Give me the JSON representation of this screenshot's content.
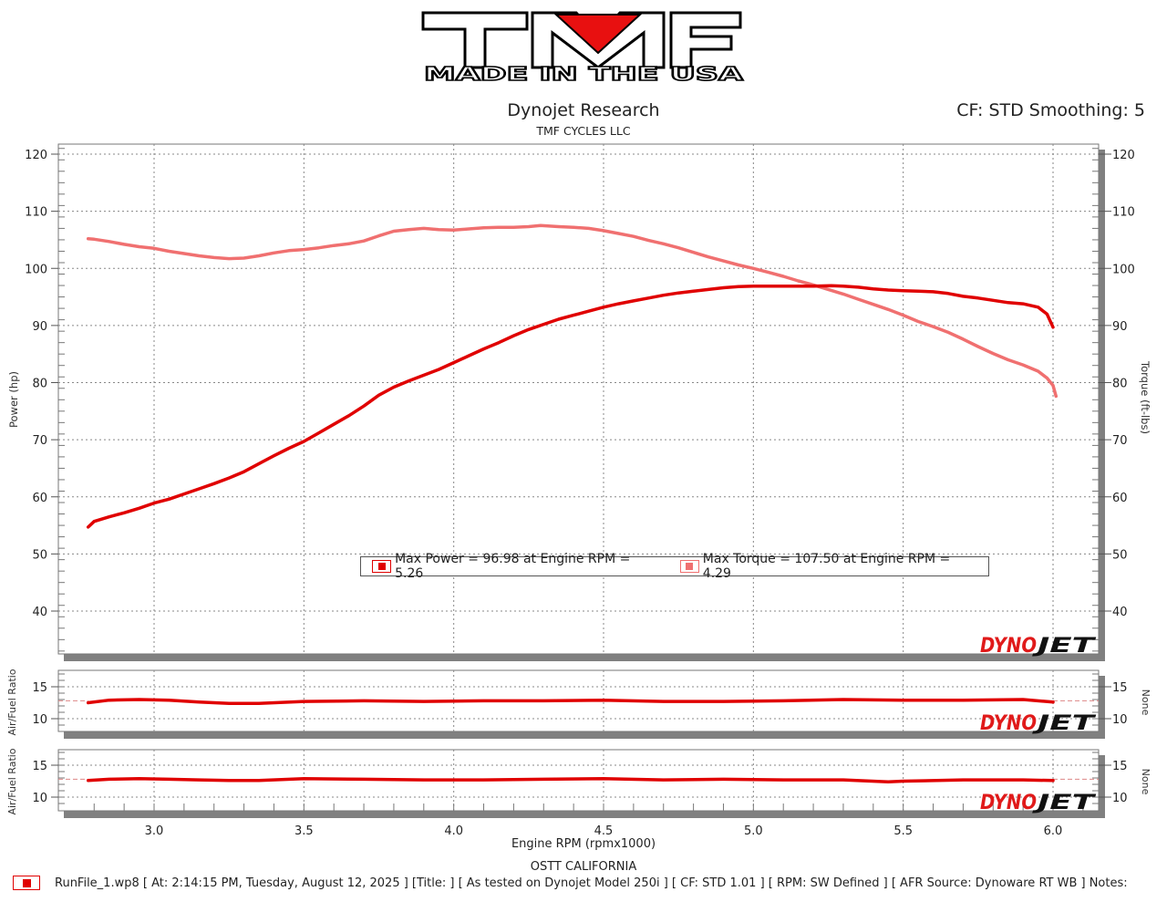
{
  "header": {
    "logo_main": "TMF",
    "logo_sub": "MADE IN THE USA",
    "title": "Dynojet Research",
    "subtitle": "TMF CYCLES LLC",
    "correction": "CF: STD Smoothing: 5"
  },
  "colors": {
    "power": "#e00000",
    "torque": "#f07070",
    "afr": "#e00000",
    "grid": "#888888",
    "frame_shadow": "#808080",
    "dynojet_red": "#e01a1a",
    "dynojet_black": "#111111"
  },
  "legend": {
    "power": "Max Power = 96.98 at Engine RPM = 5.26",
    "torque": "Max Torque = 107.50 at Engine RPM = 4.29"
  },
  "footer": {
    "xlabel": "Engine RPM (rpmx1000)",
    "location": "OSTT CALIFORNIA",
    "run_info": "RunFile_1.wp8 [ At: 2:14:15 PM, Tuesday, August 12, 2025 ] [Title: ]  [ As tested on Dynojet Model 250i ] [ CF: STD 1.01 ] [ RPM: SW Defined ] [ AFR Source: Dynoware RT WB ] Notes:"
  },
  "watermark": {
    "left": "DYNO",
    "right": "JET"
  },
  "chart_data": [
    {
      "type": "line",
      "title": "Dynojet Research",
      "subtitle": "TMF CYCLES LLC",
      "xlabel": "Engine RPM (rpmx1000)",
      "ylabel": "Power (hp)",
      "ylabel_right": "Torque (ft-lbs)",
      "xlim": [
        2.7,
        6.15
      ],
      "ylim": [
        33,
        121
      ],
      "x_ticks": [
        3.0,
        3.5,
        4.0,
        4.5,
        5.0,
        5.5,
        6.0
      ],
      "y_ticks": [
        40,
        50,
        60,
        70,
        80,
        90,
        100,
        110,
        120
      ],
      "grid": true,
      "legend_position": "lower-center",
      "series": [
        {
          "name": "Power (hp)",
          "max_label": "Max Power = 96.98 at Engine RPM = 5.26",
          "x": [
            2.78,
            2.8,
            2.85,
            2.9,
            2.95,
            3.0,
            3.05,
            3.1,
            3.15,
            3.2,
            3.25,
            3.3,
            3.35,
            3.4,
            3.45,
            3.5,
            3.55,
            3.6,
            3.65,
            3.7,
            3.75,
            3.8,
            3.85,
            3.9,
            3.95,
            4.0,
            4.05,
            4.1,
            4.15,
            4.2,
            4.25,
            4.3,
            4.35,
            4.4,
            4.45,
            4.5,
            4.55,
            4.6,
            4.65,
            4.7,
            4.75,
            4.8,
            4.85,
            4.9,
            4.95,
            5.0,
            5.05,
            5.1,
            5.15,
            5.2,
            5.26,
            5.3,
            5.35,
            5.4,
            5.45,
            5.5,
            5.55,
            5.6,
            5.65,
            5.7,
            5.75,
            5.8,
            5.85,
            5.9,
            5.95,
            5.98,
            6.0
          ],
          "values": [
            54.7,
            55.7,
            56.5,
            57.2,
            58.0,
            58.9,
            59.6,
            60.5,
            61.4,
            62.3,
            63.3,
            64.4,
            65.8,
            67.2,
            68.5,
            69.7,
            71.2,
            72.7,
            74.2,
            75.9,
            77.8,
            79.2,
            80.3,
            81.3,
            82.3,
            83.5,
            84.7,
            85.9,
            87.0,
            88.2,
            89.3,
            90.2,
            91.1,
            91.8,
            92.5,
            93.2,
            93.8,
            94.3,
            94.8,
            95.3,
            95.7,
            96.0,
            96.3,
            96.6,
            96.8,
            96.9,
            96.9,
            96.9,
            96.9,
            96.9,
            96.98,
            96.9,
            96.7,
            96.4,
            96.2,
            96.1,
            96.0,
            95.9,
            95.6,
            95.1,
            94.8,
            94.4,
            94.0,
            93.8,
            93.2,
            92.0,
            89.7
          ]
        },
        {
          "name": "Torque (ft-lbs)",
          "max_label": "Max Torque = 107.50 at Engine RPM = 4.29",
          "x": [
            2.78,
            2.8,
            2.85,
            2.9,
            2.95,
            3.0,
            3.05,
            3.1,
            3.15,
            3.2,
            3.25,
            3.3,
            3.35,
            3.4,
            3.45,
            3.5,
            3.55,
            3.6,
            3.65,
            3.7,
            3.75,
            3.8,
            3.85,
            3.9,
            3.95,
            4.0,
            4.05,
            4.1,
            4.15,
            4.2,
            4.25,
            4.29,
            4.35,
            4.4,
            4.45,
            4.5,
            4.55,
            4.6,
            4.65,
            4.7,
            4.75,
            4.8,
            4.85,
            4.9,
            4.95,
            5.0,
            5.05,
            5.1,
            5.15,
            5.2,
            5.25,
            5.3,
            5.35,
            5.4,
            5.45,
            5.5,
            5.55,
            5.6,
            5.65,
            5.7,
            5.75,
            5.8,
            5.85,
            5.9,
            5.95,
            5.98,
            6.0,
            6.01
          ],
          "values": [
            105.2,
            105.1,
            104.7,
            104.2,
            103.8,
            103.5,
            103.0,
            102.6,
            102.2,
            101.9,
            101.7,
            101.8,
            102.2,
            102.7,
            103.1,
            103.3,
            103.6,
            104.0,
            104.3,
            104.8,
            105.7,
            106.5,
            106.8,
            107.0,
            106.8,
            106.7,
            106.9,
            107.1,
            107.2,
            107.2,
            107.3,
            107.5,
            107.3,
            107.2,
            107.0,
            106.6,
            106.1,
            105.6,
            104.9,
            104.3,
            103.6,
            102.8,
            102.0,
            101.3,
            100.6,
            100.0,
            99.3,
            98.6,
            97.8,
            97.1,
            96.3,
            95.5,
            94.6,
            93.7,
            92.8,
            91.8,
            90.7,
            89.8,
            88.8,
            87.6,
            86.3,
            85.1,
            84.0,
            83.1,
            82.0,
            80.8,
            79.5,
            77.6
          ]
        }
      ]
    },
    {
      "type": "line",
      "ylabel": "Air/Fuel Ratio",
      "ylabel_right": "None",
      "y_ticks": [
        10,
        15
      ],
      "reference_line": 12.8,
      "series": [
        {
          "name": "Air/Fuel Ratio",
          "x": [
            2.78,
            2.85,
            2.95,
            3.05,
            3.15,
            3.25,
            3.35,
            3.5,
            3.7,
            3.9,
            4.1,
            4.3,
            4.5,
            4.7,
            4.9,
            5.1,
            5.3,
            5.5,
            5.7,
            5.9,
            6.0
          ],
          "values": [
            12.5,
            12.9,
            13.0,
            12.9,
            12.6,
            12.4,
            12.4,
            12.7,
            12.8,
            12.7,
            12.8,
            12.8,
            12.9,
            12.7,
            12.7,
            12.8,
            13.0,
            12.9,
            12.9,
            13.0,
            12.6
          ]
        }
      ]
    },
    {
      "type": "line",
      "ylabel": "Air/Fuel Ratio",
      "ylabel_right": "None",
      "y_ticks": [
        10,
        15
      ],
      "reference_line": 12.8,
      "series": [
        {
          "name": "Air/Fuel Ratio",
          "x": [
            2.78,
            2.85,
            2.95,
            3.05,
            3.15,
            3.25,
            3.35,
            3.5,
            3.7,
            3.9,
            4.1,
            4.3,
            4.5,
            4.7,
            4.9,
            5.1,
            5.3,
            5.45,
            5.5,
            5.7,
            5.9,
            6.0
          ],
          "values": [
            12.6,
            12.8,
            12.9,
            12.8,
            12.7,
            12.6,
            12.6,
            12.9,
            12.8,
            12.7,
            12.7,
            12.8,
            12.9,
            12.7,
            12.8,
            12.7,
            12.7,
            12.4,
            12.5,
            12.7,
            12.7,
            12.6
          ]
        }
      ]
    }
  ]
}
